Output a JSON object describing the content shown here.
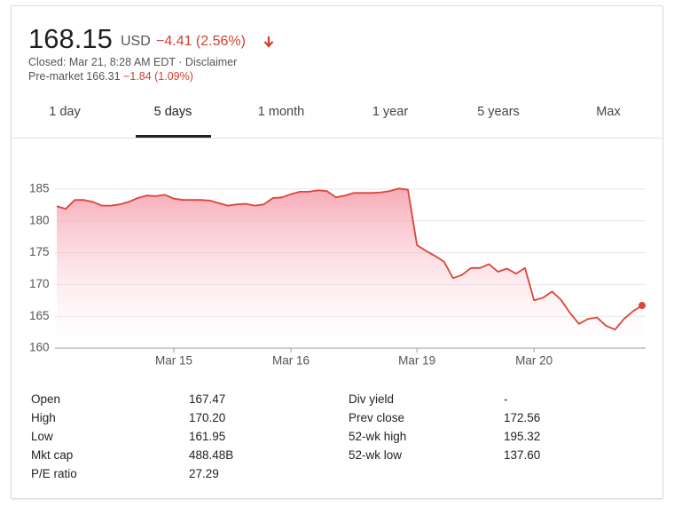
{
  "header": {
    "price": "168.15",
    "currency": "USD",
    "change": "−4.41 (2.56%)",
    "status": "Closed: Mar 21, 8:28 AM EDT · Disclaimer",
    "premarket": "Pre-market 166.31",
    "premarket_change": "−1.84 (1.09%)"
  },
  "tabs": [
    "1 day",
    "5 days",
    "1 month",
    "1 year",
    "5 years",
    "Max"
  ],
  "chart_data": {
    "type": "area",
    "categories": [
      null,
      null,
      null,
      null,
      null,
      null,
      null,
      null,
      null,
      null,
      null,
      null,
      null,
      "Mar 15",
      null,
      null,
      null,
      null,
      null,
      null,
      null,
      null,
      null,
      null,
      null,
      null,
      "Mar 16",
      null,
      null,
      null,
      null,
      null,
      null,
      null,
      null,
      null,
      null,
      null,
      null,
      null,
      "Mar 19",
      null,
      null,
      null,
      null,
      null,
      null,
      null,
      null,
      null,
      null,
      null,
      null,
      "Mar 20",
      null,
      null,
      null,
      null,
      null,
      null,
      null,
      null,
      null,
      null,
      null,
      null
    ],
    "series": [
      {
        "color": "#db4437",
        "values": [
          182.3,
          181.9,
          183.3,
          183.3,
          183.0,
          182.4,
          182.4,
          182.6,
          183.0,
          183.6,
          184.0,
          183.9,
          184.1,
          183.5,
          183.3,
          183.3,
          183.3,
          183.2,
          182.8,
          182.4,
          182.6,
          182.7,
          182.4,
          182.6,
          183.6,
          183.7,
          184.2,
          184.6,
          184.6,
          184.8,
          184.7,
          183.7,
          184.0,
          184.4,
          184.4,
          184.4,
          184.5,
          184.7,
          185.1,
          184.9,
          176.2,
          175.3,
          174.5,
          173.6,
          171.0,
          171.5,
          172.6,
          172.6,
          173.2,
          172.0,
          172.5,
          171.7,
          172.6,
          167.5,
          167.9,
          168.9,
          167.6,
          165.5,
          163.8,
          164.6,
          164.8,
          163.5,
          162.9,
          164.6,
          165.8,
          166.7
        ]
      }
    ],
    "ylim": [
      160,
      185
    ],
    "yticks": [
      160,
      165,
      170,
      175,
      180,
      185
    ],
    "grid": true
  },
  "stats": [
    [
      {
        "label": "Open",
        "value": "167.47"
      },
      {
        "label": "Div yield",
        "value": "-"
      }
    ],
    [
      {
        "label": "High",
        "value": "170.20"
      },
      {
        "label": "Prev close",
        "value": "172.56"
      }
    ],
    [
      {
        "label": "Low",
        "value": "161.95"
      },
      {
        "label": "52-wk high",
        "value": "195.32"
      }
    ],
    [
      {
        "label": "Mkt cap",
        "value": "488.48B"
      },
      {
        "label": "52-wk low",
        "value": "137.60"
      }
    ],
    [
      {
        "label": "P/E ratio",
        "value": "27.29"
      }
    ]
  ]
}
